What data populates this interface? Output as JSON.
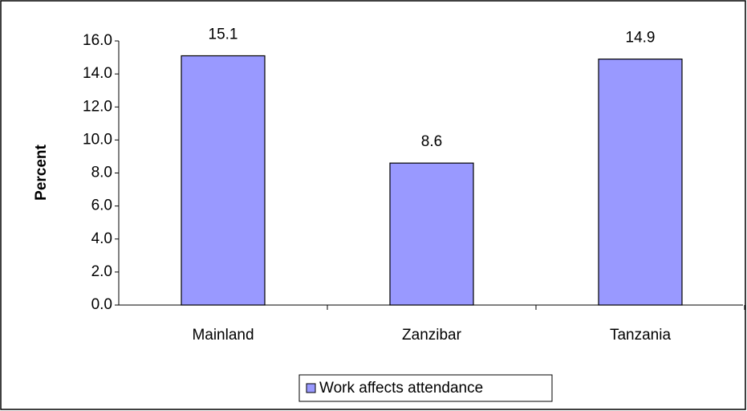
{
  "chart_data": {
    "type": "bar",
    "y_label": "Percent",
    "categories": [
      "Mainland",
      "Zanzibar",
      "Tanzania"
    ],
    "series": [
      {
        "name": "Work affects attendance",
        "color": "#9999ff",
        "values": [
          15.1,
          8.6,
          14.9
        ]
      }
    ],
    "ylim": [
      0,
      16
    ],
    "yticks": [
      {
        "value": 0,
        "label": "0.0"
      },
      {
        "value": 2,
        "label": "2.0"
      },
      {
        "value": 4,
        "label": "4.0"
      },
      {
        "value": 6,
        "label": "6.0"
      },
      {
        "value": 8,
        "label": "8.0"
      },
      {
        "value": 10,
        "label": "10.0"
      },
      {
        "value": 12,
        "label": "12.0"
      },
      {
        "value": 14,
        "label": "14.0"
      },
      {
        "value": 16,
        "label": "16.0"
      }
    ],
    "grid": false,
    "legend": "bottom"
  }
}
